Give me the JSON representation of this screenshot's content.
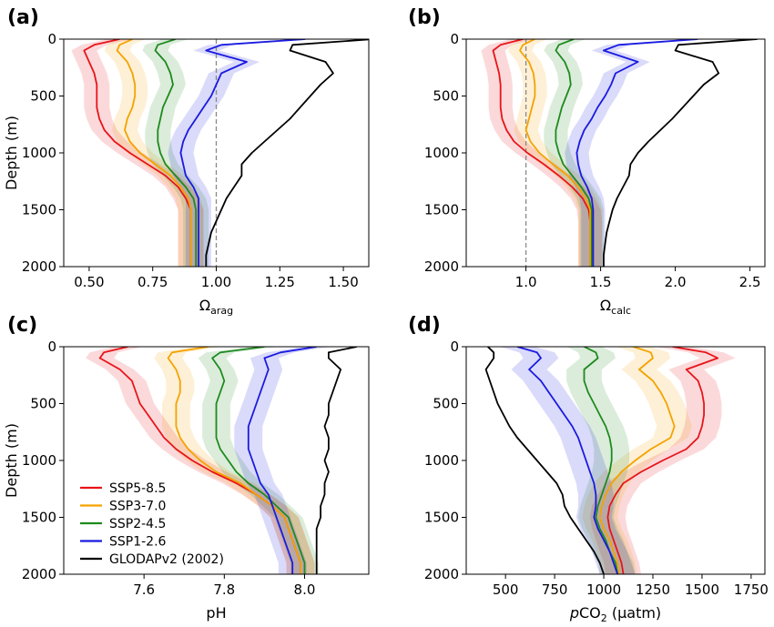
{
  "figure": {
    "legend": [
      {
        "name": "SSP5-8.5",
        "color": "#e8141a"
      },
      {
        "name": "SSP3-7.0",
        "color": "#f5a200"
      },
      {
        "name": "SSP2-4.5",
        "color": "#1e8a1e"
      },
      {
        "name": "SSP1-2.6",
        "color": "#1a1ae0"
      },
      {
        "name": "GLODAPv2 (2002)",
        "color": "#000000"
      }
    ]
  },
  "chart_data": [
    {
      "type": "line",
      "panel_label": "(a)",
      "xlabel_main": "Ω",
      "xlabel_sub": "arag",
      "ylabel": "Depth (m)",
      "xlim": [
        0.4,
        1.6
      ],
      "ylim": [
        0,
        2000
      ],
      "y_inverted": true,
      "xticks": [
        "0.50",
        "0.75",
        "1.00",
        "1.25",
        "1.50"
      ],
      "xtick_values": [
        0.5,
        0.75,
        1.0,
        1.25,
        1.5
      ],
      "yticks": [
        0,
        500,
        1000,
        1500,
        2000
      ],
      "reference_line": 1.0,
      "depth": [
        0,
        50,
        100,
        200,
        300,
        400,
        500,
        600,
        700,
        800,
        900,
        1000,
        1100,
        1200,
        1300,
        1400,
        1500,
        1600,
        1700,
        1800,
        1900,
        2000
      ],
      "series": [
        {
          "name": "SSP5-8.5",
          "color": "#e8141a",
          "spread": 0.05,
          "values": [
            0.62,
            0.52,
            0.48,
            0.5,
            0.52,
            0.53,
            0.53,
            0.53,
            0.54,
            0.56,
            0.6,
            0.66,
            0.73,
            0.8,
            0.85,
            0.88,
            0.9,
            0.9,
            0.9,
            0.9,
            0.9,
            0.9
          ]
        },
        {
          "name": "SSP3-7.0",
          "color": "#f5a200",
          "spread": 0.05,
          "values": [
            0.67,
            0.62,
            0.61,
            0.65,
            0.67,
            0.68,
            0.68,
            0.67,
            0.65,
            0.64,
            0.66,
            0.7,
            0.76,
            0.82,
            0.86,
            0.89,
            0.9,
            0.9,
            0.9,
            0.9,
            0.9,
            0.9
          ]
        },
        {
          "name": "SSP2-4.5",
          "color": "#1e8a1e",
          "spread": 0.05,
          "values": [
            0.84,
            0.77,
            0.76,
            0.8,
            0.82,
            0.83,
            0.81,
            0.79,
            0.78,
            0.77,
            0.77,
            0.78,
            0.8,
            0.84,
            0.88,
            0.91,
            0.92,
            0.92,
            0.92,
            0.92,
            0.92,
            0.92
          ]
        },
        {
          "name": "SSP1-2.6",
          "color": "#1a1ae0",
          "spread": 0.05,
          "values": [
            1.35,
            1.02,
            0.96,
            1.12,
            1.02,
            1.0,
            0.98,
            0.95,
            0.92,
            0.89,
            0.87,
            0.86,
            0.87,
            0.88,
            0.91,
            0.93,
            0.93,
            0.93,
            0.93,
            0.93,
            0.93,
            0.93
          ]
        },
        {
          "name": "GLODAPv2 (2002)",
          "color": "#000000",
          "spread": 0,
          "values": [
            1.62,
            1.3,
            1.29,
            1.43,
            1.46,
            1.41,
            1.37,
            1.33,
            1.29,
            1.24,
            1.19,
            1.14,
            1.1,
            1.1,
            1.07,
            1.04,
            1.02,
            1.0,
            0.98,
            0.97,
            0.96,
            0.96
          ]
        }
      ]
    },
    {
      "type": "line",
      "panel_label": "(b)",
      "xlabel_main": "Ω",
      "xlabel_sub": "calc",
      "ylabel": "",
      "xlim": [
        0.6,
        2.6
      ],
      "ylim": [
        0,
        2000
      ],
      "y_inverted": true,
      "xticks": [
        "1.0",
        "1.5",
        "2.0",
        "2.5"
      ],
      "xtick_values": [
        1.0,
        1.5,
        2.0,
        2.5
      ],
      "yticks": [
        0,
        500,
        1000,
        1500,
        2000
      ],
      "reference_line": 1.0,
      "depth": [
        0,
        50,
        100,
        200,
        300,
        400,
        500,
        600,
        700,
        800,
        900,
        1000,
        1100,
        1200,
        1300,
        1400,
        1500,
        1600,
        1700,
        1800,
        1900,
        2000
      ],
      "series": [
        {
          "name": "SSP5-8.5",
          "color": "#e8141a",
          "spread": 0.08,
          "values": [
            0.98,
            0.83,
            0.78,
            0.8,
            0.82,
            0.83,
            0.83,
            0.83,
            0.84,
            0.87,
            0.92,
            1.01,
            1.12,
            1.22,
            1.31,
            1.38,
            1.42,
            1.43,
            1.43,
            1.43,
            1.43,
            1.43
          ]
        },
        {
          "name": "SSP3-7.0",
          "color": "#f5a200",
          "spread": 0.08,
          "values": [
            1.06,
            0.98,
            0.96,
            1.02,
            1.05,
            1.06,
            1.06,
            1.04,
            1.02,
            1.0,
            1.03,
            1.09,
            1.18,
            1.28,
            1.35,
            1.4,
            1.43,
            1.43,
            1.43,
            1.43,
            1.43,
            1.43
          ]
        },
        {
          "name": "SSP2-4.5",
          "color": "#1e8a1e",
          "spread": 0.08,
          "values": [
            1.32,
            1.22,
            1.2,
            1.26,
            1.29,
            1.3,
            1.27,
            1.24,
            1.22,
            1.2,
            1.2,
            1.22,
            1.25,
            1.31,
            1.37,
            1.42,
            1.44,
            1.44,
            1.44,
            1.44,
            1.44,
            1.44
          ]
        },
        {
          "name": "SSP1-2.6",
          "color": "#1a1ae0",
          "spread": 0.08,
          "values": [
            2.15,
            1.62,
            1.52,
            1.75,
            1.6,
            1.57,
            1.53,
            1.48,
            1.44,
            1.39,
            1.36,
            1.34,
            1.35,
            1.37,
            1.41,
            1.44,
            1.45,
            1.45,
            1.45,
            1.45,
            1.45,
            1.45
          ]
        },
        {
          "name": "GLODAPv2 (2002)",
          "color": "#000000",
          "spread": 0,
          "values": [
            2.55,
            2.02,
            2.0,
            2.25,
            2.29,
            2.19,
            2.12,
            2.05,
            1.98,
            1.9,
            1.82,
            1.75,
            1.7,
            1.69,
            1.65,
            1.61,
            1.58,
            1.56,
            1.54,
            1.53,
            1.52,
            1.52
          ]
        }
      ]
    },
    {
      "type": "line",
      "panel_label": "(c)",
      "xlabel_main": "pH",
      "xlabel_sub": "",
      "ylabel": "Depth (m)",
      "xlim": [
        7.4,
        8.16
      ],
      "ylim": [
        0,
        2000
      ],
      "y_inverted": true,
      "xticks": [
        "7.6",
        "7.8",
        "8.0"
      ],
      "xtick_values": [
        7.6,
        7.8,
        8.0
      ],
      "yticks": [
        0,
        500,
        1000,
        1500,
        2000
      ],
      "reference_line": null,
      "depth": [
        0,
        50,
        100,
        200,
        300,
        400,
        500,
        600,
        700,
        800,
        900,
        1000,
        1100,
        1200,
        1300,
        1400,
        1500,
        1600,
        1700,
        1800,
        1900,
        2000
      ],
      "series": [
        {
          "name": "SSP5-8.5",
          "color": "#e8141a",
          "spread": 0.035,
          "values": [
            7.56,
            7.5,
            7.49,
            7.54,
            7.57,
            7.58,
            7.59,
            7.61,
            7.63,
            7.65,
            7.68,
            7.72,
            7.77,
            7.83,
            7.88,
            7.92,
            7.95,
            7.96,
            7.97,
            7.98,
            7.99,
            7.99
          ]
        },
        {
          "name": "SSP3-7.0",
          "color": "#f5a200",
          "spread": 0.035,
          "values": [
            7.76,
            7.67,
            7.66,
            7.68,
            7.69,
            7.69,
            7.68,
            7.68,
            7.68,
            7.69,
            7.71,
            7.74,
            7.78,
            7.84,
            7.88,
            7.92,
            7.95,
            7.96,
            7.97,
            7.98,
            7.99,
            7.99
          ]
        },
        {
          "name": "SSP2-4.5",
          "color": "#1e8a1e",
          "spread": 0.035,
          "values": [
            7.9,
            7.79,
            7.77,
            7.79,
            7.8,
            7.79,
            7.78,
            7.78,
            7.78,
            7.78,
            7.79,
            7.81,
            7.83,
            7.86,
            7.9,
            7.93,
            7.96,
            7.97,
            7.98,
            7.99,
            8.0,
            8.0
          ]
        },
        {
          "name": "SSP1-2.6",
          "color": "#1a1ae0",
          "spread": 0.035,
          "values": [
            8.03,
            7.94,
            7.9,
            7.91,
            7.9,
            7.89,
            7.88,
            7.87,
            7.86,
            7.86,
            7.86,
            7.87,
            7.88,
            7.89,
            7.91,
            7.92,
            7.93,
            7.94,
            7.95,
            7.96,
            7.97,
            7.97
          ]
        },
        {
          "name": "GLODAPv2 (2002)",
          "color": "#000000",
          "spread": 0,
          "values": [
            8.13,
            8.06,
            8.06,
            8.09,
            8.08,
            8.07,
            8.06,
            8.06,
            8.05,
            8.06,
            8.06,
            8.05,
            8.06,
            8.05,
            8.05,
            8.04,
            8.04,
            8.03,
            8.03,
            8.03,
            8.03,
            8.03
          ]
        }
      ]
    },
    {
      "type": "line",
      "panel_label": "(d)",
      "xlabel_main": "pCO",
      "xlabel_sub": "2",
      "xlabel_unit": " (μatm)",
      "ylabel": "",
      "xlim": [
        300,
        1820
      ],
      "ylim": [
        0,
        2000
      ],
      "y_inverted": true,
      "xticks": [
        "500",
        "750",
        "1000",
        "1250",
        "1500",
        "1750"
      ],
      "xtick_values": [
        500,
        750,
        1000,
        1250,
        1500,
        1750
      ],
      "yticks": [
        0,
        500,
        1000,
        1500,
        2000
      ],
      "reference_line": null,
      "depth": [
        0,
        50,
        100,
        200,
        300,
        400,
        500,
        600,
        700,
        800,
        900,
        1000,
        1100,
        1200,
        1300,
        1400,
        1500,
        1600,
        1700,
        1800,
        1900,
        2000
      ],
      "series": [
        {
          "name": "SSP5-8.5",
          "color": "#e8141a",
          "spread": 90,
          "values": [
            1350,
            1520,
            1580,
            1420,
            1480,
            1500,
            1510,
            1510,
            1500,
            1480,
            1420,
            1300,
            1190,
            1100,
            1060,
            1030,
            1020,
            1030,
            1050,
            1070,
            1090,
            1100
          ]
        },
        {
          "name": "SSP3-7.0",
          "color": "#f5a200",
          "spread": 90,
          "values": [
            1150,
            1240,
            1250,
            1180,
            1250,
            1290,
            1320,
            1340,
            1360,
            1340,
            1240,
            1160,
            1090,
            1040,
            1010,
            990,
            980,
            1000,
            1030,
            1050,
            1070,
            1080
          ]
        },
        {
          "name": "SSP2-4.5",
          "color": "#1e8a1e",
          "spread": 90,
          "values": [
            900,
            960,
            970,
            900,
            900,
            920,
            950,
            980,
            1010,
            1030,
            1040,
            1040,
            1030,
            1010,
            990,
            970,
            960,
            980,
            1010,
            1030,
            1060,
            1070
          ]
        },
        {
          "name": "SSP1-2.6",
          "color": "#1a1ae0",
          "spread": 90,
          "values": [
            560,
            660,
            680,
            620,
            680,
            720,
            760,
            800,
            840,
            870,
            890,
            910,
            930,
            950,
            960,
            960,
            950,
            970,
            1000,
            1030,
            1050,
            1070
          ]
        },
        {
          "name": "GLODAPv2 (2002)",
          "color": "#000000",
          "spread": 0,
          "values": [
            410,
            440,
            440,
            400,
            420,
            440,
            460,
            490,
            520,
            560,
            610,
            660,
            710,
            760,
            790,
            800,
            830,
            870,
            910,
            950,
            980,
            1000
          ]
        }
      ]
    }
  ]
}
